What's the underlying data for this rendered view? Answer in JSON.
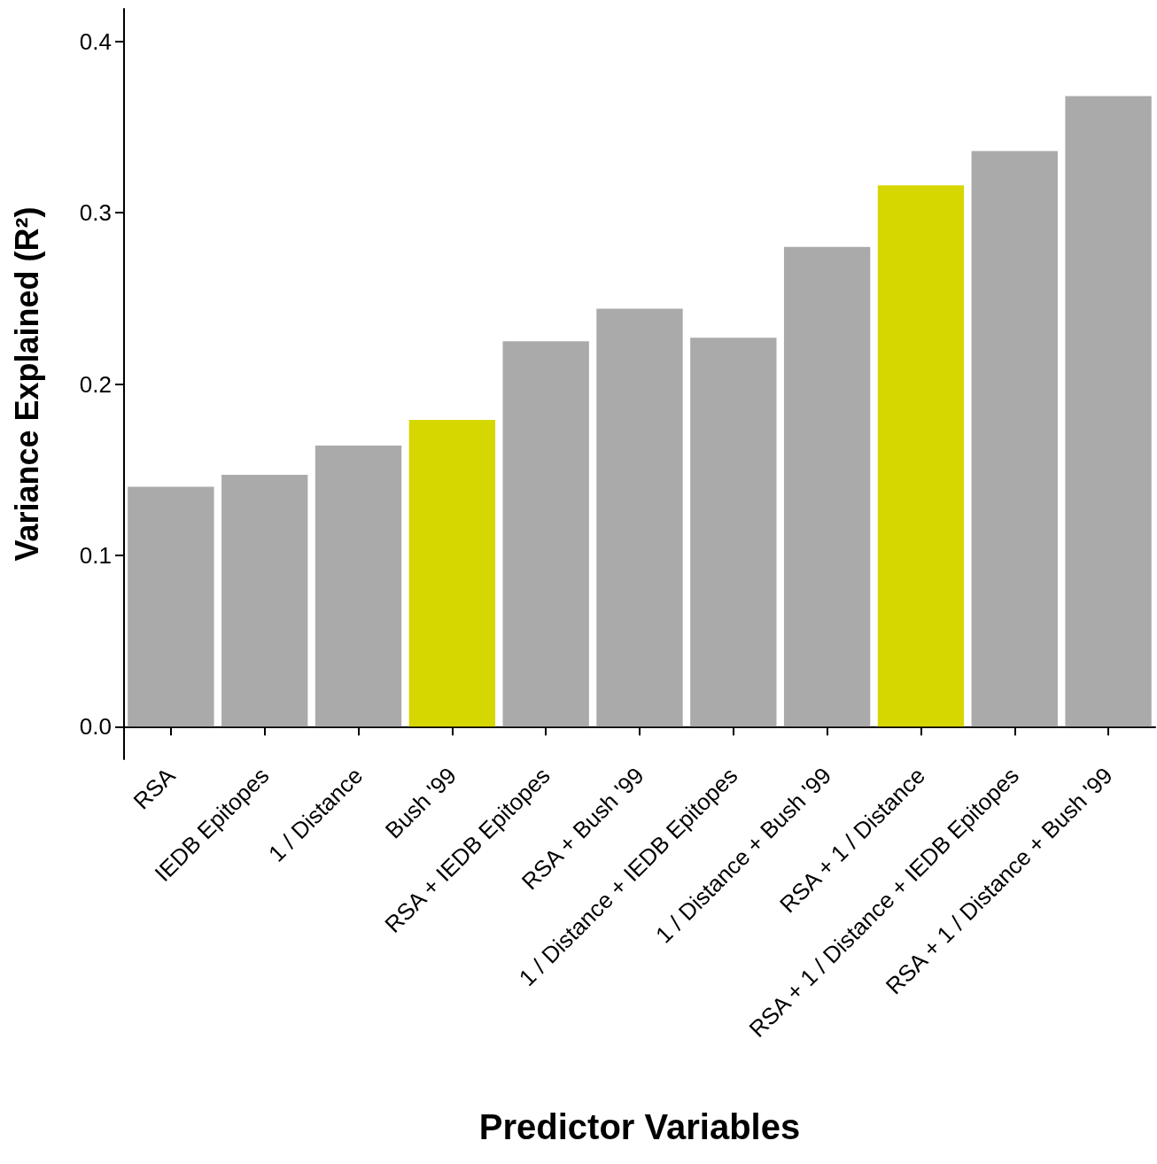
{
  "chart_data": {
    "type": "bar",
    "xlabel": "Predictor Variables",
    "ylabel": "Variance Explained (R²)",
    "categories": [
      "RSA",
      "IEDB Epitopes",
      "1 / Distance",
      "Bush '99",
      "RSA + IEDB Epitopes",
      "RSA + Bush '99",
      "1 / Distance + IEDB Epitopes",
      "1 / Distance + Bush '99",
      "RSA + 1 / Distance",
      "RSA + 1 / Distance + IEDB Epitopes",
      "RSA + 1 / Distance + Bush '99"
    ],
    "values": [
      0.14,
      0.147,
      0.164,
      0.179,
      0.225,
      0.244,
      0.227,
      0.28,
      0.316,
      0.336,
      0.368
    ],
    "colors": [
      "#aaaaaa",
      "#aaaaaa",
      "#aaaaaa",
      "#d6d600",
      "#aaaaaa",
      "#aaaaaa",
      "#aaaaaa",
      "#aaaaaa",
      "#d6d600",
      "#aaaaaa",
      "#aaaaaa"
    ],
    "ylim": [
      -0.019,
      0.419
    ],
    "yticks": [
      {
        "value": 0,
        "label": "0.0"
      },
      {
        "value": 0.1,
        "label": "0.1"
      },
      {
        "value": 0.2,
        "label": "0.2"
      },
      {
        "value": 0.3,
        "label": "0.3"
      },
      {
        "value": 0.4,
        "label": "0.4"
      }
    ]
  }
}
